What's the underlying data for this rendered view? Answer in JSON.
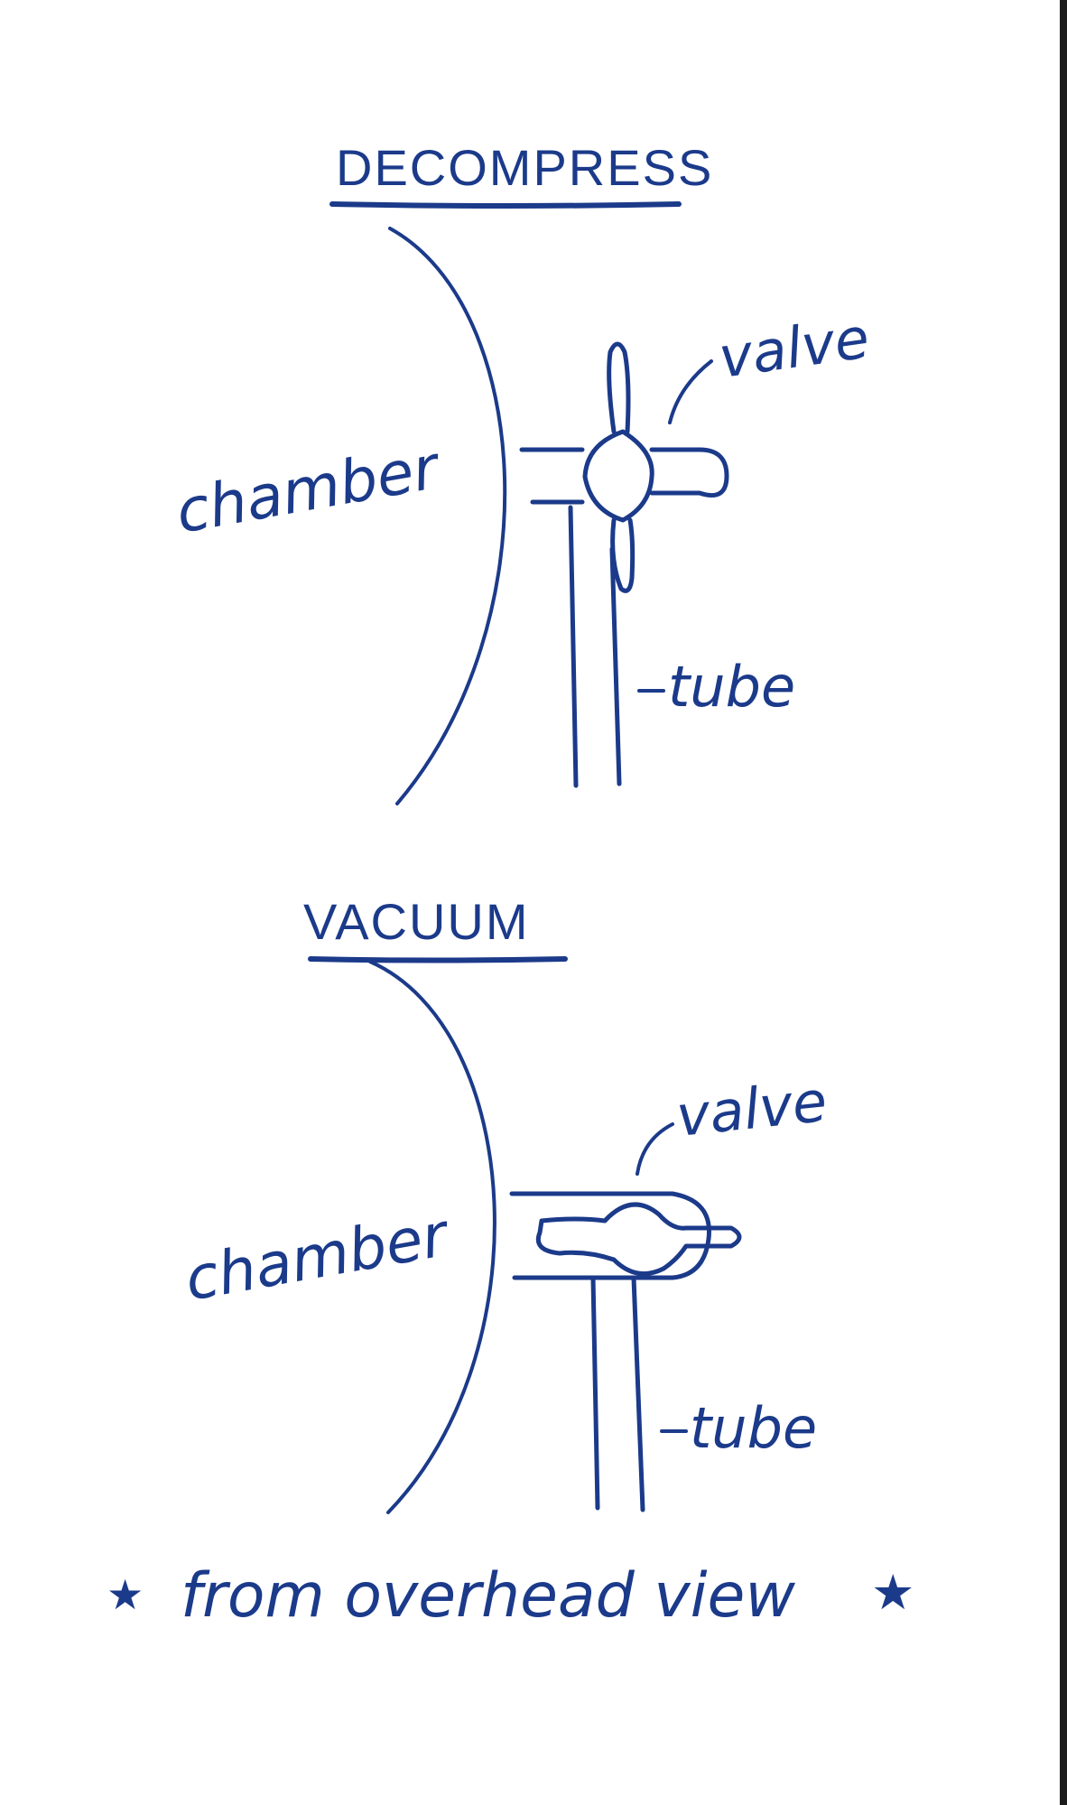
{
  "diagrams": [
    {
      "title": "DECOMPRESS",
      "labels": {
        "chamber": "chamber",
        "valve": "valve",
        "tube": "tube"
      }
    },
    {
      "title": "VACUUM",
      "labels": {
        "chamber": "chamber",
        "valve": "valve",
        "tube": "tube"
      }
    }
  ],
  "footnote": {
    "text": "from overhead view",
    "marker": "★"
  },
  "colors": {
    "ink": "#1b3a8a",
    "paper": "#ffffff"
  }
}
